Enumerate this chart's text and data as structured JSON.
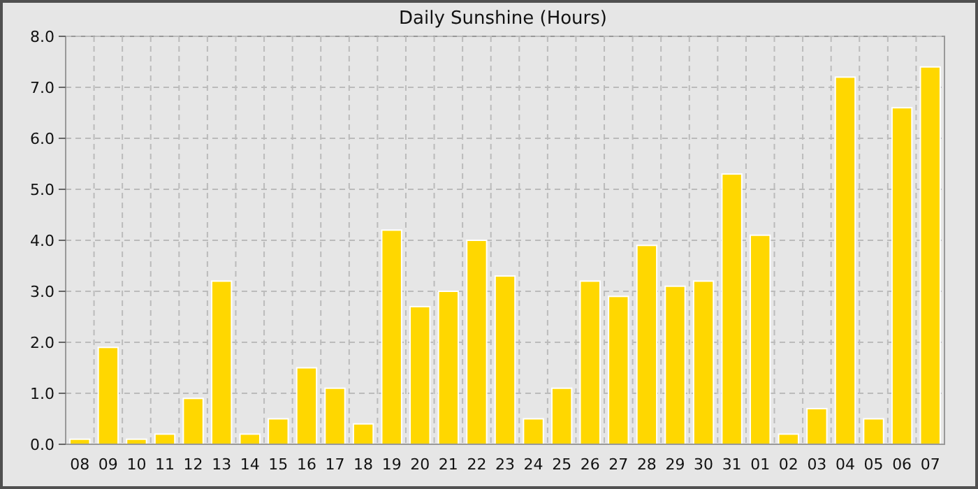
{
  "chart_data": {
    "type": "bar",
    "title": "Daily Sunshine (Hours)",
    "categories": [
      "08",
      "09",
      "10",
      "11",
      "12",
      "13",
      "14",
      "15",
      "16",
      "17",
      "18",
      "19",
      "20",
      "21",
      "22",
      "23",
      "24",
      "25",
      "26",
      "27",
      "28",
      "29",
      "30",
      "31",
      "01",
      "02",
      "03",
      "04",
      "05",
      "06",
      "07"
    ],
    "values": [
      0.1,
      1.9,
      0.1,
      0.2,
      0.9,
      3.2,
      0.2,
      0.5,
      1.5,
      1.1,
      0.4,
      4.2,
      2.7,
      3.0,
      4.0,
      3.3,
      0.5,
      1.1,
      3.2,
      2.9,
      3.9,
      3.1,
      3.2,
      5.3,
      4.1,
      0.2,
      0.7,
      7.2,
      0.5,
      6.6,
      7.4
    ],
    "color": "#ffd700",
    "ylim": [
      0,
      8
    ],
    "yticks": [
      {
        "value": 0,
        "label": "0.0"
      },
      {
        "value": 1,
        "label": "1.0"
      },
      {
        "value": 2,
        "label": "2.0"
      },
      {
        "value": 3,
        "label": "3.0"
      },
      {
        "value": 4,
        "label": "4.0"
      },
      {
        "value": 5,
        "label": "5.0"
      },
      {
        "value": 6,
        "label": "6.0"
      },
      {
        "value": 7,
        "label": "7.0"
      },
      {
        "value": 8,
        "label": "8.0"
      }
    ],
    "grid": true
  }
}
